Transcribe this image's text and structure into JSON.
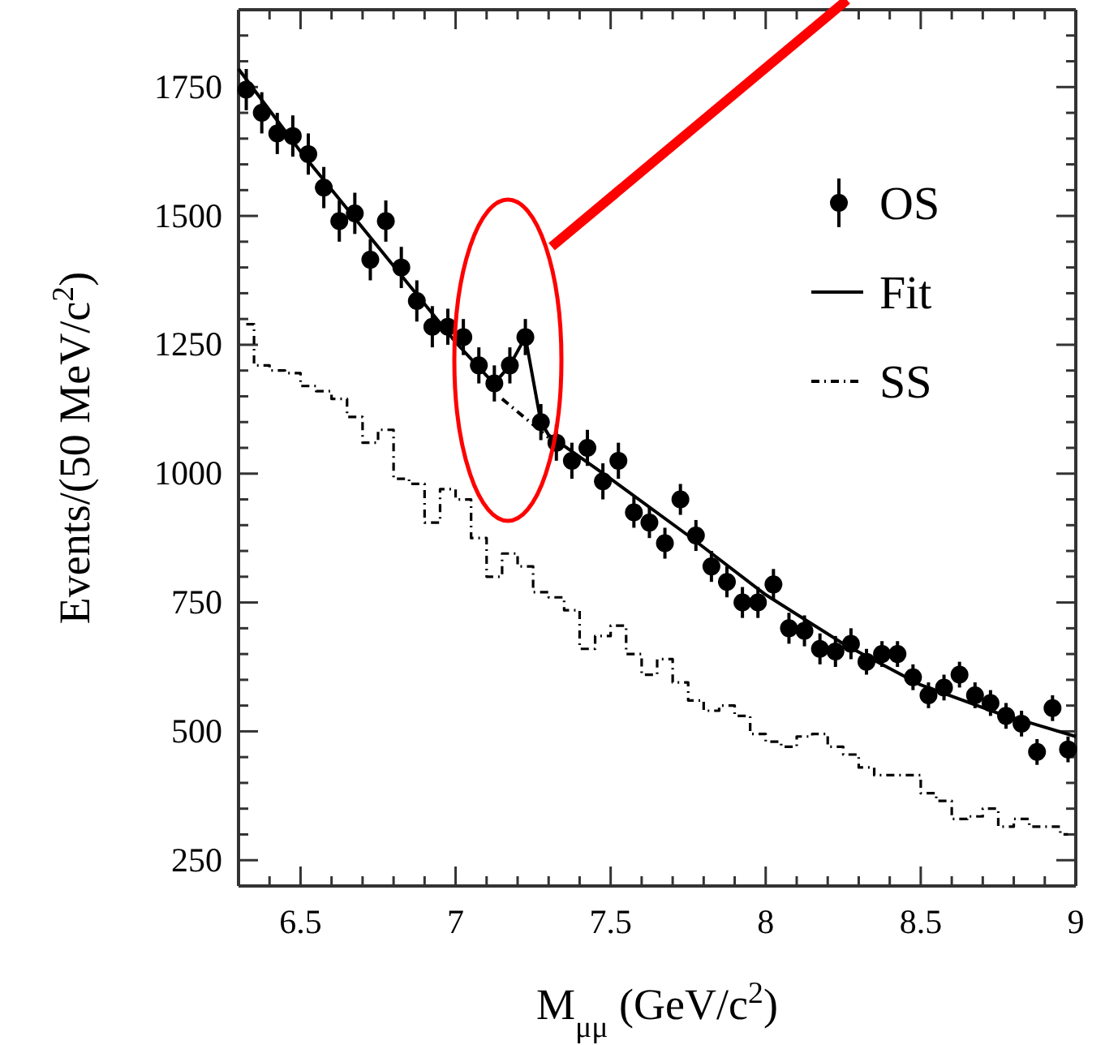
{
  "chart_data": {
    "type": "scatter",
    "xlabel": "M$_{μμ}$ (GeV/c$^{2}$)",
    "ylabel": "Events/(50 MeV/c$^{2}$)",
    "xlim": [
      6.3,
      9
    ],
    "ylim": [
      200,
      1900
    ],
    "xticks": [
      {
        "value": 6.4,
        "label": null
      },
      6.5,
      {
        "value": 6.6,
        "label": null
      },
      {
        "value": 6.7,
        "label": null
      },
      {
        "value": 6.8,
        "label": null
      },
      {
        "value": 6.9,
        "label": null
      },
      7,
      {
        "value": 7.1,
        "label": null
      },
      {
        "value": 7.2,
        "label": null
      },
      {
        "value": 7.3,
        "label": null
      },
      {
        "value": 7.4,
        "label": null
      },
      7.5,
      {
        "value": 7.6,
        "label": null
      },
      {
        "value": 7.7,
        "label": null
      },
      {
        "value": 7.8,
        "label": null
      },
      {
        "value": 7.9,
        "label": null
      },
      8,
      {
        "value": 8.1,
        "label": null
      },
      {
        "value": 8.2,
        "label": null
      },
      {
        "value": 8.3,
        "label": null
      },
      {
        "value": 8.4,
        "label": null
      },
      8.5,
      {
        "value": 8.6,
        "label": null
      },
      {
        "value": 8.7,
        "label": null
      },
      {
        "value": 8.8,
        "label": null
      },
      {
        "value": 8.9,
        "label": null
      },
      9
    ],
    "yticks": [
      250,
      {
        "value": 300,
        "label": null
      },
      {
        "value": 350,
        "label": null
      },
      {
        "value": 400,
        "label": null
      },
      {
        "value": 450,
        "label": null
      },
      500,
      {
        "value": 550,
        "label": null
      },
      {
        "value": 600,
        "label": null
      },
      {
        "value": 650,
        "label": null
      },
      {
        "value": 700,
        "label": null
      },
      750,
      {
        "value": 800,
        "label": null
      },
      {
        "value": 850,
        "label": null
      },
      {
        "value": 900,
        "label": null
      },
      {
        "value": 950,
        "label": null
      },
      1000,
      {
        "value": 1050,
        "label": null
      },
      {
        "value": 1100,
        "label": null
      },
      {
        "value": 1150,
        "label": null
      },
      {
        "value": 1200,
        "label": null
      },
      1250,
      {
        "value": 1300,
        "label": null
      },
      {
        "value": 1350,
        "label": null
      },
      {
        "value": 1400,
        "label": null
      },
      {
        "value": 1450,
        "label": null
      },
      1500,
      {
        "value": 1550,
        "label": null
      },
      {
        "value": 1600,
        "label": null
      },
      {
        "value": 1650,
        "label": null
      },
      {
        "value": 1700,
        "label": null
      },
      1750,
      {
        "value": 1800,
        "label": null
      },
      {
        "value": 1850,
        "label": null
      }
    ],
    "grid": false,
    "legend": "right",
    "x": [
      6.325,
      6.375,
      6.425,
      6.475,
      6.525,
      6.575,
      6.625,
      6.675,
      6.725,
      6.775,
      6.825,
      6.875,
      6.925,
      6.975,
      7.025,
      7.075,
      7.125,
      7.175,
      7.225,
      7.275,
      7.325,
      7.375,
      7.425,
      7.475,
      7.525,
      7.575,
      7.625,
      7.675,
      7.725,
      7.775,
      7.825,
      7.875,
      7.925,
      7.975,
      8.025,
      8.075,
      8.125,
      8.175,
      8.225,
      8.275,
      8.325,
      8.375,
      8.425,
      8.475,
      8.525,
      8.575,
      8.625,
      8.675,
      8.725,
      8.775,
      8.825,
      8.875,
      8.925,
      8.975
    ],
    "series": [
      {
        "name": "OS",
        "marker": "circle",
        "color": "#000000",
        "values": [
          1745,
          1700,
          1660,
          1655,
          1620,
          1555,
          1490,
          1505,
          1415,
          1490,
          1400,
          1335,
          1285,
          1285,
          1265,
          1210,
          1175,
          1210,
          1265,
          1100,
          1060,
          1025,
          1050,
          985,
          1025,
          925,
          905,
          865,
          950,
          880,
          820,
          790,
          750,
          750,
          785,
          700,
          695,
          660,
          655,
          670,
          635,
          650,
          650,
          605,
          570,
          585,
          610,
          570,
          555,
          530,
          515,
          460,
          545,
          465
        ],
        "errors": [
          40,
          40,
          40,
          40,
          40,
          40,
          40,
          40,
          40,
          40,
          40,
          40,
          40,
          35,
          35,
          35,
          35,
          35,
          35,
          35,
          35,
          35,
          35,
          35,
          35,
          30,
          30,
          30,
          30,
          30,
          30,
          30,
          30,
          30,
          30,
          30,
          30,
          30,
          30,
          30,
          25,
          25,
          25,
          25,
          25,
          25,
          25,
          25,
          25,
          25,
          25,
          25,
          25,
          25
        ]
      },
      {
        "name": "Fit",
        "type": "line",
        "color": "#000000",
        "line_style": "solid",
        "x": [
          6.3,
          6.5,
          6.75,
          7.0,
          7.1,
          7.125,
          7.175,
          7.225,
          7.275,
          7.3,
          7.5,
          7.75,
          8.0,
          8.25,
          8.5,
          8.75,
          9.0
        ],
        "values": [
          1785,
          1625,
          1440,
          1255,
          1190,
          1175,
          1210,
          1265,
          1100,
          1075,
          990,
          880,
          765,
          670,
          590,
          535,
          490
        ]
      },
      {
        "type": "line",
        "color": "#000000",
        "line_style": "dashed",
        "x": [
          7.15,
          7.3
        ],
        "values": [
          1145,
          1070
        ]
      },
      {
        "name": "SS",
        "type": "step",
        "color": "#000000",
        "line_style": "dashed",
        "values": [
          1290,
          1210,
          1200,
          1195,
          1170,
          1160,
          1145,
          1110,
          1060,
          1085,
          990,
          980,
          905,
          970,
          950,
          875,
          800,
          845,
          820,
          770,
          760,
          735,
          660,
          685,
          705,
          650,
          610,
          640,
          595,
          560,
          540,
          550,
          530,
          495,
          480,
          470,
          490,
          495,
          470,
          455,
          430,
          415,
          415,
          415,
          380,
          365,
          330,
          335,
          350,
          315,
          330,
          315,
          315,
          300
        ]
      }
    ]
  }
}
